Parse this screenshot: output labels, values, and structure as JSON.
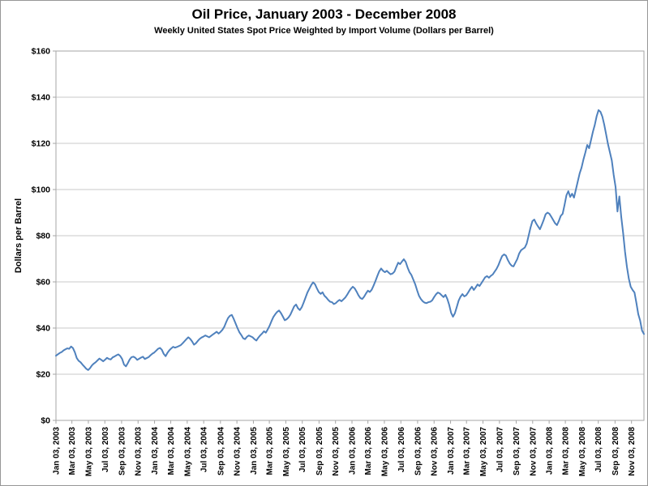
{
  "chart_data": {
    "type": "line",
    "title": "Oil Price, January 2003 - December 2008",
    "subtitle": "Weekly United States Spot Price Weighted by Import Volume (Dollars per Barrel)",
    "ylabel": "Dollars per Barrel",
    "frequency": "weekly",
    "x_start_label": "Jan 03, 2003",
    "ylim": [
      0,
      160
    ],
    "ytick_step": 20,
    "grid": "horizontal",
    "legend": "none",
    "ytick_labels": [
      "$0",
      "$20",
      "$40",
      "$60",
      "$80",
      "$100",
      "$120",
      "$140",
      "$160"
    ],
    "x_tick_labels": [
      "Jan 03, 2003",
      "Mar 03, 2003",
      "May 03, 2003",
      "Jul 03, 2003",
      "Sep 03, 2003",
      "Nov 03, 2003",
      "Jan 03, 2004",
      "Mar 03, 2004",
      "May 03, 2004",
      "Jul 03, 2004",
      "Sep 03, 2004",
      "Nov 03, 2004",
      "Jan 03, 2005",
      "Mar 03, 2005",
      "May 03, 2005",
      "Jul 03, 2005",
      "Sep 03, 2005",
      "Nov 03, 2005",
      "Jan 03, 2006",
      "Mar 03, 2006",
      "May 03, 2006",
      "Jul 03, 2006",
      "Sep 03, 2006",
      "Nov 03, 2006",
      "Jan 03, 2007",
      "Mar 03, 2007",
      "May 03, 2007",
      "Jul 03, 2007",
      "Sep 03, 2007",
      "Nov 03, 2007",
      "Jan 03, 2008",
      "Mar 03, 2008",
      "May 03, 2008",
      "Jul 03, 2008",
      "Sep 03, 2008",
      "Nov 03, 2008"
    ],
    "values": [
      28.0,
      28.6,
      29.2,
      29.6,
      30.3,
      30.8,
      31.2,
      31.0,
      32.0,
      31.3,
      29.5,
      27.0,
      25.8,
      25.2,
      24.2,
      23.3,
      22.4,
      21.8,
      22.6,
      23.8,
      24.6,
      25.2,
      26.0,
      26.8,
      26.2,
      25.6,
      26.3,
      27.1,
      26.6,
      26.4,
      27.3,
      27.7,
      28.2,
      28.6,
      27.9,
      26.6,
      24.2,
      23.4,
      24.8,
      26.4,
      27.4,
      27.6,
      27.1,
      26.2,
      26.7,
      27.2,
      27.6,
      26.6,
      27.0,
      27.4,
      28.2,
      28.9,
      29.4,
      30.2,
      31.0,
      31.4,
      30.6,
      28.8,
      27.8,
      29.3,
      30.4,
      31.2,
      31.9,
      31.5,
      31.8,
      32.2,
      32.6,
      33.4,
      34.3,
      35.2,
      36.0,
      35.3,
      34.2,
      32.8,
      33.4,
      34.4,
      35.3,
      35.9,
      36.3,
      36.8,
      36.4,
      36.0,
      36.6,
      37.2,
      37.8,
      38.4,
      37.6,
      38.3,
      39.2,
      40.5,
      42.5,
      44.3,
      45.3,
      45.7,
      44.0,
      42.0,
      40.0,
      38.2,
      37.0,
      35.6,
      35.2,
      36.2,
      36.8,
      36.4,
      36.0,
      35.2,
      34.6,
      35.8,
      36.8,
      37.6,
      38.6,
      38.0,
      39.4,
      41.0,
      43.0,
      44.8,
      46.0,
      47.0,
      47.6,
      46.5,
      45.0,
      43.4,
      43.8,
      44.6,
      45.8,
      47.6,
      49.4,
      50.2,
      48.6,
      47.8,
      49.0,
      51.0,
      53.2,
      55.4,
      57.0,
      58.6,
      59.8,
      59.0,
      57.2,
      55.6,
      54.8,
      55.5,
      54.0,
      53.2,
      52.2,
      51.4,
      51.2,
      50.4,
      50.8,
      51.6,
      52.2,
      51.6,
      52.4,
      53.2,
      54.4,
      55.8,
      57.0,
      57.9,
      57.2,
      55.8,
      54.2,
      53.0,
      52.6,
      53.6,
      55.0,
      56.2,
      55.6,
      56.6,
      58.4,
      60.4,
      62.6,
      64.6,
      65.8,
      64.8,
      64.2,
      64.8,
      64.0,
      63.3,
      63.6,
      64.4,
      66.4,
      68.3,
      67.7,
      68.8,
      69.8,
      68.6,
      66.2,
      64.2,
      63.0,
      61.0,
      59.0,
      56.4,
      54.0,
      52.6,
      51.6,
      51.0,
      50.8,
      51.2,
      51.4,
      52.0,
      53.4,
      54.6,
      55.4,
      55.0,
      54.2,
      53.4,
      54.4,
      52.6,
      50.0,
      46.6,
      44.9,
      46.4,
      49.1,
      51.9,
      53.6,
      54.7,
      53.7,
      54.2,
      55.4,
      56.8,
      57.9,
      56.5,
      57.6,
      58.9,
      58.2,
      59.4,
      60.7,
      62.0,
      62.5,
      61.8,
      62.6,
      63.2,
      64.4,
      65.6,
      67.2,
      69.3,
      71.2,
      71.9,
      71.4,
      69.5,
      68.0,
      67.0,
      66.7,
      68.3,
      69.9,
      72.3,
      73.7,
      74.3,
      74.9,
      76.6,
      80.0,
      83.5,
      86.3,
      87.0,
      85.3,
      84.0,
      82.8,
      84.8,
      86.9,
      89.3,
      90.0,
      89.5,
      88.2,
      86.8,
      85.4,
      84.6,
      86.4,
      88.6,
      89.5,
      93.3,
      97.5,
      99.3,
      96.8,
      98.2,
      96.5,
      100.0,
      103.5,
      107.0,
      109.5,
      113.0,
      116.0,
      119.3,
      117.9,
      121.4,
      125.0,
      128.0,
      131.8,
      134.4,
      133.7,
      131.6,
      128.1,
      123.9,
      119.6,
      116.1,
      112.6,
      106.3,
      101.1,
      90.5,
      97.0,
      88.1,
      81.1,
      73.0,
      66.5,
      61.4,
      57.9,
      56.5,
      55.4,
      50.9,
      46.0,
      43.2,
      38.9,
      37.4
    ],
    "colors": {
      "line": "#4f81bd",
      "gridline": "#c9c9c9",
      "axis": "#a6a6a6",
      "text": "#000000",
      "chart_border": "#969696"
    }
  }
}
